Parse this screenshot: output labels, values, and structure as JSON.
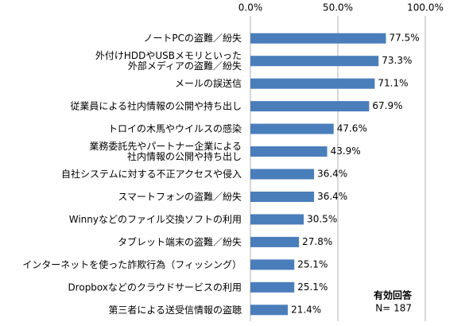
{
  "chart_data": {
    "type": "bar",
    "orientation": "horizontal",
    "categories": [
      "ノートPCの盗難／紛失",
      "外付けHDDやUSBメモリといった\n外部メディアの盗難／紛失",
      "メールの誤送信",
      "従業員による社内情報の公開や持ち出し",
      "トロイの木馬やウイルスの感染",
      "業務委託先やパートナー企業による\n社内情報の公開や持ち出し",
      "自社システムに対する不正アクセスや侵入",
      "スマートフォンの盗難／紛失",
      "Winnyなどのファイル交換ソフトの利用",
      "タブレット端末の盗難／紛失",
      "インターネットを使った詐欺行為（フィッシング）",
      "Dropboxなどのクラウドサービスの利用",
      "第三者による送受信情報の盗聴"
    ],
    "values": [
      77.5,
      73.3,
      71.1,
      67.9,
      47.6,
      43.9,
      36.4,
      36.4,
      30.5,
      27.8,
      25.1,
      25.1,
      21.4
    ],
    "value_labels": [
      "77.5%",
      "73.3%",
      "71.1%",
      "67.9%",
      "47.6%",
      "43.9%",
      "36.4%",
      "36.4%",
      "30.5%",
      "27.8%",
      "25.1%",
      "25.1%",
      "21.4%"
    ],
    "color": "#4a7ebb",
    "xlim": [
      0,
      100
    ],
    "xticks": [
      {
        "value": 0,
        "label": "0.0%"
      },
      {
        "value": 50,
        "label": "50.0%"
      },
      {
        "value": 100,
        "label": "100.0%"
      }
    ],
    "grid": true,
    "annotation": {
      "title": "有効回答",
      "text": "N= 187"
    }
  }
}
